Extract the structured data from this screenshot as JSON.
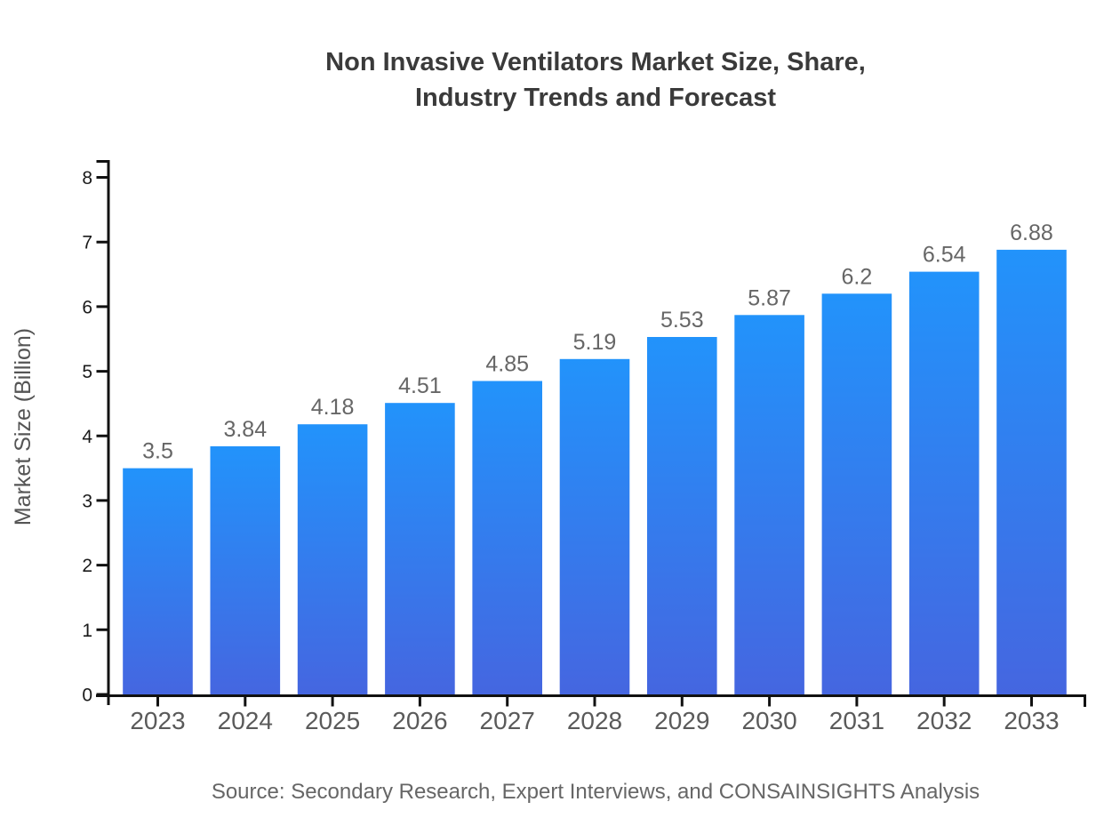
{
  "page_title": "Non Invasive Ventilators Market Size, Share,\nIndustry Trends and Forecast",
  "source_note": "Source: Secondary Research, Expert Interviews, and CONSAINSIGHTS Analysis",
  "chart_data": {
    "type": "bar",
    "title": "Non Invasive Ventilators Market Size, Share,\nIndustry Trends and Forecast",
    "categories": [
      "2023",
      "2024",
      "2025",
      "2026",
      "2027",
      "2028",
      "2029",
      "2030",
      "2031",
      "2032",
      "2033"
    ],
    "values": [
      3.5,
      3.84,
      4.18,
      4.51,
      4.85,
      5.19,
      5.53,
      5.87,
      6.2,
      6.54,
      6.88
    ],
    "value_labels": [
      "3.5",
      "3.84",
      "4.18",
      "4.51",
      "4.85",
      "5.19",
      "5.53",
      "5.87",
      "6.2",
      "6.54",
      "6.88"
    ],
    "xlabel": "",
    "ylabel": "Market Size (Billion)",
    "ylim": [
      0,
      8
    ],
    "yticks": [
      0,
      1,
      2,
      3,
      4,
      5,
      6,
      7,
      8
    ],
    "grid": false,
    "legend": false,
    "bar_style": "vertical, per-bar top-to-bottom blue gradient, data labels above bars"
  },
  "colors": {
    "background": "#ffffff",
    "bar_gradient_top": "#2293fb",
    "bar_gradient_bottom": "#4566e0",
    "axis": "#111111",
    "y_tick_label": "#1a1a1a",
    "x_tick_label": "#5a5a5a",
    "value_label": "#666666",
    "title": "#3a3a3a",
    "axis_label": "#555555",
    "source": "#666666"
  }
}
